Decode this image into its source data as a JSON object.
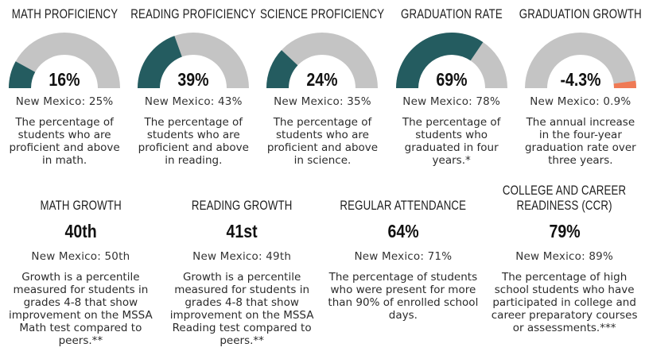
{
  "colors": {
    "fill": "#245c60",
    "track": "#c4c4c4",
    "negative": "#ef7a55",
    "text": "#2b2b2b"
  },
  "gauges": [
    {
      "title": "MATH PROFICIENCY",
      "value_label": "16%",
      "value": 16,
      "comparison": "New Mexico: 25%",
      "description": "The percentage of students who are proficient and above in math."
    },
    {
      "title": "READING PROFICIENCY",
      "value_label": "39%",
      "value": 39,
      "comparison": "New Mexico: 43%",
      "description": "The percentage of students who are proficient and above in reading."
    },
    {
      "title": "SCIENCE PROFICIENCY",
      "value_label": "24%",
      "value": 24,
      "comparison": "New Mexico: 35%",
      "description": "The percentage of students who are proficient and above in science."
    },
    {
      "title": "GRADUATION RATE",
      "value_label": "69%",
      "value": 69,
      "comparison": "New Mexico: 78%",
      "description": "The percentage of students who graduated in four years.*"
    },
    {
      "title": "GRADUATION GROWTH",
      "value_label": "-4.3%",
      "value": -4.3,
      "comparison": "New Mexico: 0.9%",
      "description": "The annual increase in the four-year graduation rate over three years."
    }
  ],
  "stats": [
    {
      "title": "MATH GROWTH",
      "value_label": "40th",
      "comparison": "New Mexico: 50th",
      "description": "Growth is a percentile measured for students in grades 4-8 that show improvement on the MSSA Math test compared to peers.**"
    },
    {
      "title": "READING GROWTH",
      "value_label": "41st",
      "comparison": "New Mexico: 49th",
      "description": "Growth is a percentile measured for students in grades 4-8 that show improvement on the MSSA Reading test compared to peers.**"
    },
    {
      "title": "REGULAR ATTENDANCE",
      "value_label": "64%",
      "comparison": "New Mexico: 71%",
      "description": "The percentage of students who were present for more than 90% of enrolled school days."
    },
    {
      "title": "COLLEGE AND CAREER READINESS (CCR)",
      "title_lines": [
        "COLLEGE AND CAREER",
        "READINESS (CCR)"
      ],
      "value_label": "79%",
      "comparison": "New Mexico: 89%",
      "description": "The percentage of high school students who have participated in college and career preparatory courses or assessments.***"
    }
  ]
}
